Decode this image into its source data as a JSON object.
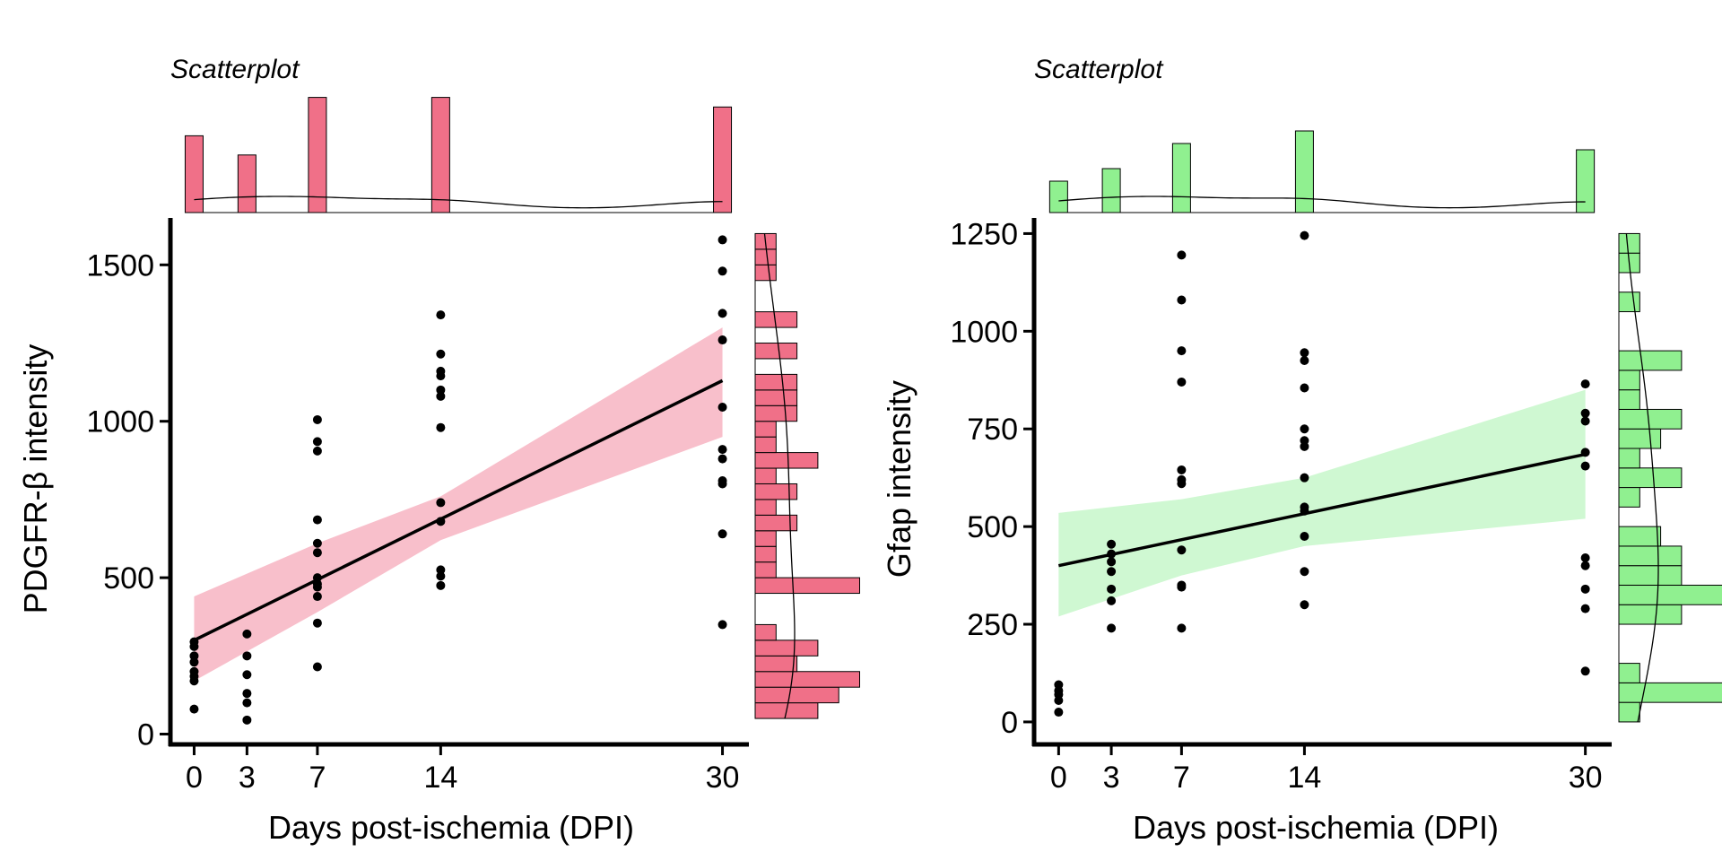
{
  "chart_data": [
    {
      "type": "scatter",
      "subtitle": "Scatterplot",
      "xlabel": "Days post-ischemia (DPI)",
      "ylabel": "PDGFR-β intensity",
      "xticks": [
        0,
        3,
        7,
        14,
        30
      ],
      "yticks": [
        0,
        500,
        1000,
        1500
      ],
      "xlim": [
        -1.5,
        31.5
      ],
      "ylim": [
        -10,
        1650
      ],
      "color": "#F07088",
      "band_color": "#F8BFCB",
      "points": {
        "0": [
          80,
          170,
          185,
          200,
          230,
          250,
          280,
          295
        ],
        "3": [
          45,
          100,
          130,
          190,
          250,
          320
        ],
        "7": [
          215,
          355,
          440,
          470,
          480,
          500,
          580,
          610,
          685,
          905,
          935,
          1005
        ],
        "14": [
          475,
          505,
          525,
          680,
          740,
          980,
          1080,
          1100,
          1145,
          1160,
          1215,
          1340
        ],
        "30": [
          350,
          640,
          800,
          810,
          880,
          910,
          1045,
          1260,
          1345,
          1480,
          1580
        ]
      },
      "fit": {
        "x": [
          0,
          30
        ],
        "y": [
          300,
          1130
        ]
      },
      "ci": {
        "x": [
          0,
          7,
          14,
          30
        ],
        "lower": [
          170,
          390,
          620,
          950
        ],
        "upper": [
          440,
          610,
          760,
          1300
        ]
      },
      "top_histogram": {
        "bins": [
          0,
          3,
          7,
          14,
          30
        ],
        "counts": [
          8,
          6,
          12,
          12,
          11
        ]
      },
      "right_histogram": {
        "bin_width": 50,
        "bins": [
          75,
          125,
          175,
          225,
          275,
          325,
          375,
          425,
          475,
          525,
          575,
          625,
          675,
          725,
          775,
          825,
          875,
          925,
          975,
          1025,
          1075,
          1125,
          1175,
          1225,
          1275,
          1325,
          1375,
          1425,
          1475,
          1525,
          1575
        ],
        "counts": [
          3,
          4,
          5,
          2,
          3,
          1,
          0,
          0,
          5,
          1,
          1,
          1,
          2,
          1,
          2,
          1,
          3,
          1,
          1,
          2,
          2,
          2,
          0,
          2,
          0,
          2,
          0,
          0,
          1,
          1,
          1
        ]
      }
    },
    {
      "type": "scatter",
      "subtitle": "Scatterplot",
      "xlabel": "Days post-ischemia (DPI)",
      "ylabel": "Gfap intensity",
      "xticks": [
        0,
        3,
        7,
        14,
        30
      ],
      "yticks": [
        0,
        250,
        500,
        750,
        1000,
        1250
      ],
      "xlim": [
        -1.5,
        31.5
      ],
      "ylim": [
        -30,
        1290
      ],
      "color": "#90F090",
      "band_color": "#CFF8D2",
      "points": {
        "0": [
          25,
          55,
          70,
          80,
          95
        ],
        "3": [
          240,
          310,
          340,
          385,
          410,
          430,
          455
        ],
        "7": [
          240,
          345,
          350,
          440,
          610,
          620,
          645,
          870,
          950,
          1080,
          1195
        ],
        "14": [
          300,
          385,
          475,
          540,
          550,
          625,
          705,
          720,
          750,
          855,
          925,
          945,
          1245
        ],
        "30": [
          130,
          290,
          340,
          400,
          420,
          655,
          690,
          770,
          790,
          865
        ]
      },
      "fit": {
        "x": [
          0,
          30
        ],
        "y": [
          400,
          685
        ]
      },
      "ci": {
        "x": [
          0,
          7,
          14,
          30
        ],
        "lower": [
          270,
          375,
          450,
          520
        ],
        "upper": [
          535,
          570,
          625,
          850
        ]
      },
      "top_histogram": {
        "bins": [
          0,
          3,
          7,
          14,
          30
        ],
        "counts": [
          5,
          7,
          11,
          13,
          10
        ]
      },
      "right_histogram": {
        "bin_width": 50,
        "bins": [
          25,
          75,
          125,
          175,
          225,
          275,
          325,
          375,
          425,
          475,
          525,
          575,
          625,
          675,
          725,
          775,
          825,
          875,
          925,
          975,
          1025,
          1075,
          1125,
          1175,
          1225
        ],
        "counts": [
          1,
          5,
          1,
          0,
          0,
          3,
          5,
          3,
          3,
          2,
          0,
          1,
          3,
          1,
          2,
          3,
          1,
          1,
          3,
          0,
          0,
          1,
          0,
          1,
          1
        ]
      }
    }
  ]
}
